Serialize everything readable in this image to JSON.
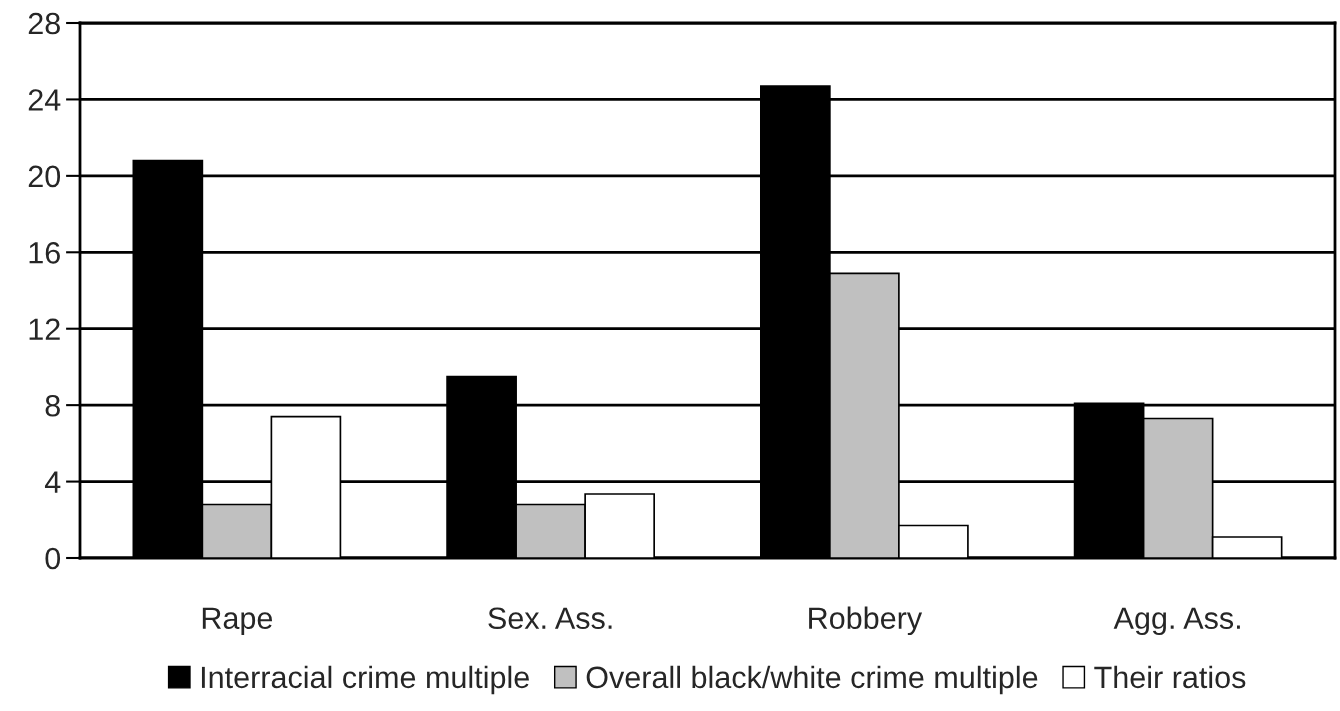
{
  "chart_data": {
    "type": "bar",
    "categories": [
      "Rape",
      "Sex. Ass.",
      "Robbery",
      "Agg. Ass."
    ],
    "series": [
      {
        "name": "Interracial crime multiple",
        "color": "#000000",
        "values": [
          20.8,
          9.5,
          24.7,
          8.1
        ]
      },
      {
        "name": "Overall black/white crime multiple",
        "color": "#c0c0c0",
        "values": [
          2.8,
          2.8,
          14.9,
          7.3
        ]
      },
      {
        "name": "Their ratios",
        "color": "#ffffff",
        "values": [
          7.4,
          3.35,
          1.7,
          1.1
        ]
      }
    ],
    "ylim": [
      0,
      28
    ],
    "yticks": [
      0,
      4,
      8,
      12,
      16,
      20,
      24,
      28
    ],
    "grid": "y",
    "legend": "bottom"
  }
}
